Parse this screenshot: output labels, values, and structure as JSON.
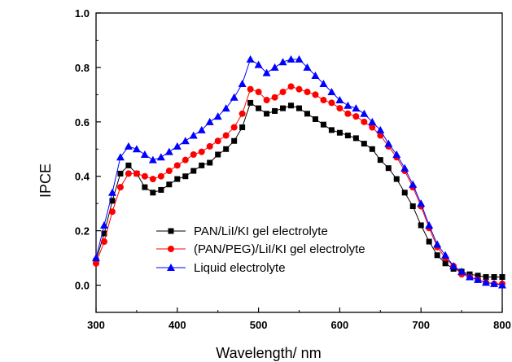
{
  "chart_data": {
    "type": "line",
    "title": "",
    "xlabel": "Wavelength/ nm",
    "ylabel": "IPCE",
    "xlim": [
      300,
      800
    ],
    "ylim": [
      -0.1,
      1.0
    ],
    "xticks": [
      "300",
      "400",
      "500",
      "600",
      "700",
      "800"
    ],
    "yticks": [
      "0.0",
      "0.2",
      "0.4",
      "0.6",
      "0.8",
      "1.0"
    ],
    "grid": false,
    "legend_position": "lower-left",
    "x": [
      300,
      310,
      320,
      330,
      340,
      350,
      360,
      370,
      380,
      390,
      400,
      410,
      420,
      430,
      440,
      450,
      460,
      470,
      480,
      490,
      500,
      510,
      520,
      530,
      540,
      550,
      560,
      570,
      580,
      590,
      600,
      610,
      620,
      630,
      640,
      650,
      660,
      670,
      680,
      690,
      700,
      710,
      720,
      730,
      740,
      750,
      760,
      770,
      780,
      790,
      800
    ],
    "series": [
      {
        "name": "PAN/LiI/KI  gel electrolyte",
        "marker": "square",
        "color": "#000000",
        "values": [
          0.09,
          0.19,
          0.31,
          0.41,
          0.44,
          0.41,
          0.36,
          0.34,
          0.35,
          0.37,
          0.39,
          0.4,
          0.42,
          0.44,
          0.45,
          0.48,
          0.5,
          0.53,
          0.58,
          0.67,
          0.65,
          0.63,
          0.64,
          0.65,
          0.66,
          0.65,
          0.63,
          0.61,
          0.59,
          0.57,
          0.56,
          0.55,
          0.54,
          0.52,
          0.5,
          0.46,
          0.43,
          0.39,
          0.34,
          0.29,
          0.22,
          0.16,
          0.11,
          0.08,
          0.06,
          0.05,
          0.04,
          0.035,
          0.03,
          0.03,
          0.03
        ]
      },
      {
        "name": "(PAN/PEG)/LiI/KI  gel electrolyte",
        "marker": "circle",
        "color": "#ff0000",
        "values": [
          0.08,
          0.16,
          0.27,
          0.36,
          0.41,
          0.41,
          0.4,
          0.39,
          0.4,
          0.42,
          0.44,
          0.46,
          0.48,
          0.49,
          0.51,
          0.53,
          0.55,
          0.58,
          0.63,
          0.72,
          0.71,
          0.68,
          0.69,
          0.71,
          0.73,
          0.72,
          0.71,
          0.7,
          0.68,
          0.67,
          0.65,
          0.63,
          0.62,
          0.6,
          0.58,
          0.55,
          0.51,
          0.47,
          0.42,
          0.36,
          0.29,
          0.21,
          0.14,
          0.1,
          0.07,
          0.04,
          0.03,
          0.02,
          0.01,
          0.005,
          0.005
        ]
      },
      {
        "name": "Liquid electrolyte",
        "marker": "triangle",
        "color": "#0000ff",
        "values": [
          0.1,
          0.22,
          0.34,
          0.47,
          0.51,
          0.5,
          0.48,
          0.46,
          0.47,
          0.49,
          0.51,
          0.53,
          0.55,
          0.57,
          0.6,
          0.62,
          0.65,
          0.69,
          0.74,
          0.83,
          0.81,
          0.78,
          0.8,
          0.82,
          0.83,
          0.83,
          0.8,
          0.77,
          0.74,
          0.71,
          0.68,
          0.66,
          0.65,
          0.63,
          0.6,
          0.57,
          0.52,
          0.48,
          0.43,
          0.37,
          0.3,
          0.22,
          0.15,
          0.11,
          0.07,
          0.05,
          0.03,
          0.02,
          0.01,
          0.005,
          0.0
        ]
      }
    ]
  }
}
